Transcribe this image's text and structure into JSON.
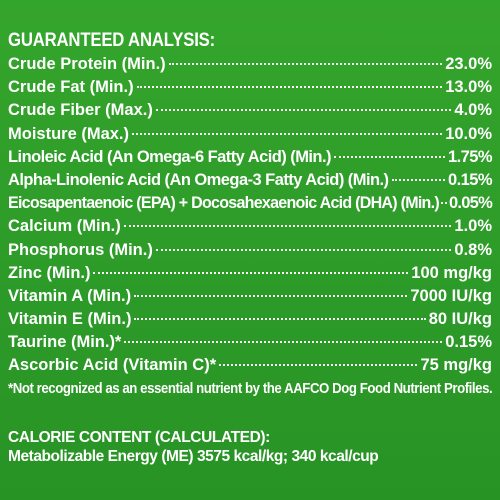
{
  "title": "GUARANTEED ANALYSIS:",
  "rows": [
    {
      "label": "Crude Protein (Min.)",
      "value": "23.0%"
    },
    {
      "label": "Crude Fat (Min.)",
      "value": "13.0%"
    },
    {
      "label": "Crude Fiber (Max.)",
      "value": "4.0%"
    },
    {
      "label": "Moisture (Max.)",
      "value": "10.0%"
    },
    {
      "label": "Linoleic Acid (An Omega-6 Fatty Acid) (Min.)",
      "value": "1.75%"
    },
    {
      "label": "Alpha-Linolenic Acid (An Omega-3 Fatty Acid) (Min.)",
      "value": "0.15%"
    },
    {
      "label": "Eicosapentaenoic (EPA) + Docosahexaenoic Acid (DHA) (Min.)",
      "value": "0.05%"
    },
    {
      "label": "Calcium (Min.)",
      "value": "1.0%"
    },
    {
      "label": "Phosphorus (Min.)",
      "value": "0.8%"
    },
    {
      "label": "Zinc (Min.)",
      "value": "100 mg/kg"
    },
    {
      "label": "Vitamin A (Min.)",
      "value": "7000 IU/kg"
    },
    {
      "label": "Vitamin E (Min.)",
      "value": "80 IU/kg"
    },
    {
      "label": "Taurine (Min.)*",
      "value": "0.15%"
    },
    {
      "label": "Ascorbic Acid (Vitamin C)*",
      "value": "75 mg/kg"
    }
  ],
  "footnote": "*Not recognized as an essential nutrient by the AAFCO Dog Food Nutrient Profiles.",
  "calorie": {
    "heading": "CALORIE CONTENT (CALCULATED):",
    "text": "Metabolizable Energy (ME) 3575 kcal/kg;  340 kcal/cup"
  },
  "colors": {
    "background": "#2d9a2a",
    "text": "#ffffff"
  }
}
